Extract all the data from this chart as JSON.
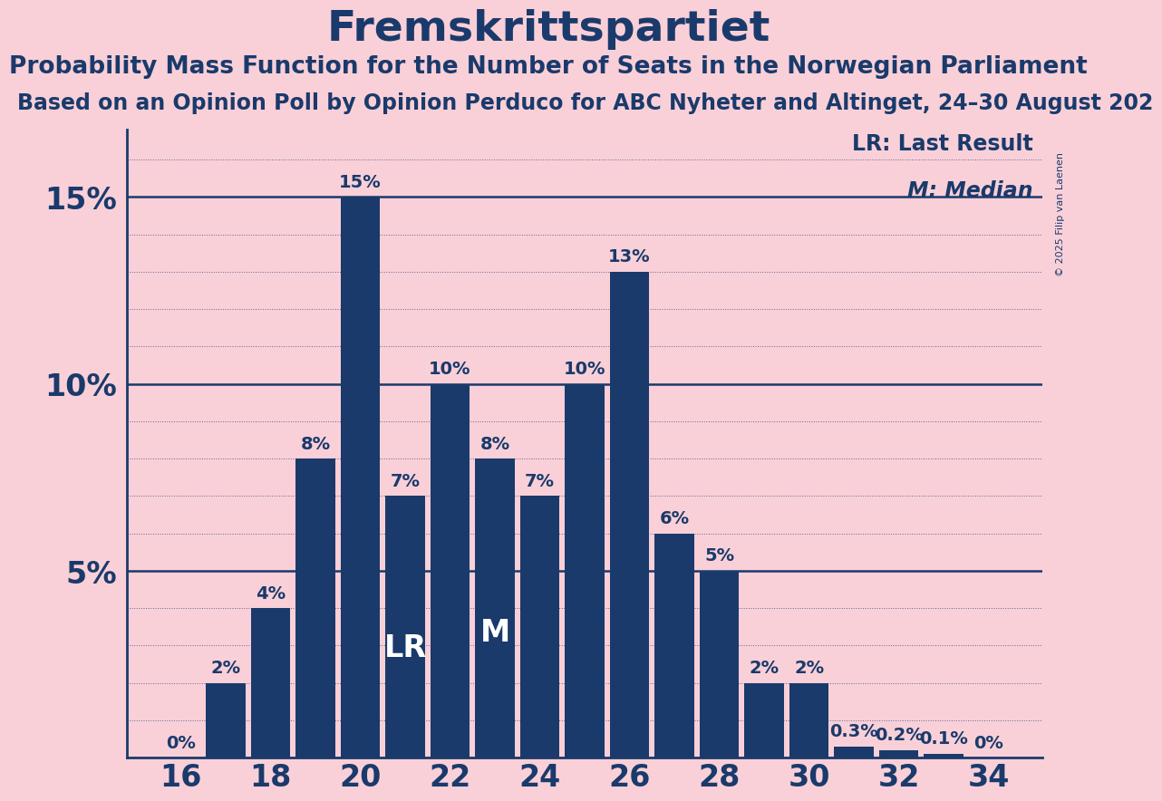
{
  "title": "Fremskrittspartiet",
  "subtitle1": "Probability Mass Function for the Number of Seats in the Norwegian Parliament",
  "subtitle2": "Based on an Opinion Poll by Opinion Perduco for ABC Nyheter and Altinget, 24–30 August 202",
  "copyright": "© 2025 Filip van Laenen",
  "seats": [
    16,
    17,
    18,
    19,
    20,
    21,
    22,
    23,
    24,
    25,
    26,
    27,
    28,
    29,
    30,
    31,
    32,
    33,
    34
  ],
  "probabilities": [
    0.0,
    0.02,
    0.04,
    0.08,
    0.15,
    0.07,
    0.1,
    0.08,
    0.07,
    0.1,
    0.13,
    0.06,
    0.05,
    0.02,
    0.02,
    0.003,
    0.002,
    0.001,
    0.0
  ],
  "bar_labels": [
    "0%",
    "2%",
    "4%",
    "8%",
    "15%",
    "7%",
    "10%",
    "8%",
    "7%",
    "10%",
    "13%",
    "6%",
    "5%",
    "2%",
    "2%",
    "0.3%",
    "0.2%",
    "0.1%",
    "0%"
  ],
  "bar_color": "#1a3a6b",
  "background_color": "#f9d0d8",
  "title_color": "#1a3a6b",
  "tick_label_color": "#1a3a6b",
  "grid_color": "#1a3a6b",
  "bar_label_color": "#1a3a6b",
  "LR_seat": 21,
  "M_seat": 23,
  "LR_label": "LR",
  "M_label": "M",
  "legend_LR": "LR: Last Result",
  "legend_M": "M: Median",
  "ylim": [
    0,
    0.168
  ],
  "yticks": [
    0.05,
    0.1,
    0.15
  ],
  "ytick_labels": [
    "5%",
    "10%",
    "15%"
  ],
  "xtick_positions": [
    16,
    18,
    20,
    22,
    24,
    26,
    28,
    30,
    32,
    34
  ],
  "solid_line_y": 0.15,
  "title_fontsize": 34,
  "subtitle1_fontsize": 19,
  "subtitle2_fontsize": 17,
  "axis_fontsize": 24,
  "bar_label_fontsize": 14,
  "legend_fontsize": 17,
  "LR_M_label_fontsize": 24,
  "bar_width": 0.88
}
